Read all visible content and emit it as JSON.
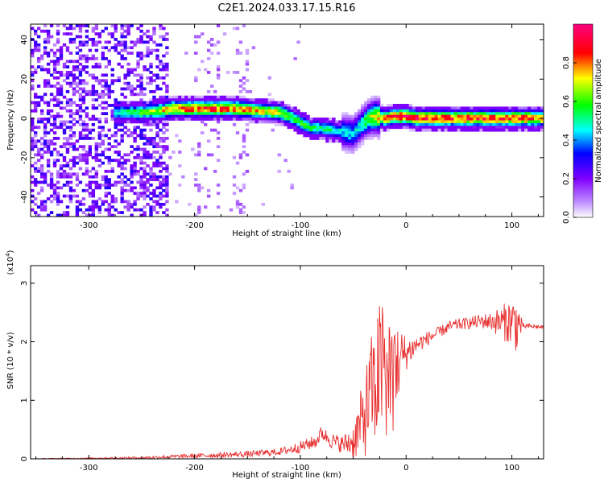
{
  "title": "C2E1.2024.033.17.15.R16",
  "chart_data": [
    {
      "type": "heatmap",
      "name": "spectrogram",
      "xlabel": "Height of straight line (km)",
      "ylabel": "Frequency (Hz)",
      "xlim": [
        -355,
        130
      ],
      "ylim": [
        -50,
        48
      ],
      "x_ticks": [
        -300,
        -200,
        -100,
        0,
        100
      ],
      "y_ticks": [
        -40,
        -20,
        0,
        20,
        40
      ],
      "colorbar": {
        "label": "Normalized spectral amplitude",
        "range": [
          0.0,
          1.0
        ],
        "ticks": [
          0.0,
          0.2,
          0.4,
          0.6,
          0.8
        ],
        "colors": [
          "#ffffff",
          "#8000ff",
          "#0000ff",
          "#00ffff",
          "#00ff00",
          "#ffff00",
          "#ff0000",
          "#ff0080"
        ]
      },
      "ridge": {
        "x": [
          -270,
          -250,
          -230,
          -220,
          -200,
          -180,
          -160,
          -140,
          -120,
          -110,
          -100,
          -90,
          -80,
          -70,
          -60,
          -50,
          -45,
          -40,
          -35,
          -30,
          -20,
          -10,
          0,
          10,
          30,
          60,
          100,
          130
        ],
        "y": [
          3,
          3,
          4,
          5,
          5,
          5,
          5,
          4,
          3,
          1,
          -2,
          -5,
          -5,
          -6,
          -7,
          -8,
          -5,
          -2,
          0,
          1,
          0,
          1,
          1,
          0,
          0,
          0,
          0,
          0
        ],
        "peak": [
          0.5,
          0.6,
          0.7,
          0.8,
          0.85,
          0.85,
          0.8,
          0.75,
          0.7,
          0.6,
          0.6,
          0.55,
          0.5,
          0.5,
          0.45,
          0.45,
          0.45,
          0.5,
          0.6,
          0.7,
          0.8,
          0.85,
          0.9,
          0.9,
          0.85,
          0.85,
          0.85,
          0.8
        ]
      }
    },
    {
      "type": "line",
      "name": "snr",
      "xlabel": "Height of straight line (km)",
      "ylabel": "SNR (10 * v/v)",
      "y_multiplier": "(x10",
      "y_multiplier_exp": "4",
      "y_multiplier_close": ")",
      "xlim": [
        -355,
        130
      ],
      "ylim": [
        0,
        3.3
      ],
      "x_ticks": [
        -300,
        -200,
        -100,
        0,
        100
      ],
      "y_ticks": [
        0,
        1,
        2,
        3
      ],
      "color": "#e83030",
      "envelope": {
        "x": [
          -355,
          -300,
          -250,
          -200,
          -150,
          -120,
          -100,
          -85,
          -80,
          -70,
          -60,
          -50,
          -40,
          -35,
          -30,
          -25,
          -20,
          -15,
          -10,
          -5,
          0,
          10,
          20,
          30,
          40,
          50,
          60,
          70,
          80,
          90,
          100,
          105,
          110,
          120,
          130
        ],
        "y": [
          0.0,
          0.01,
          0.02,
          0.05,
          0.08,
          0.12,
          0.2,
          0.3,
          0.45,
          0.3,
          0.25,
          0.3,
          0.7,
          1.0,
          1.3,
          1.5,
          1.6,
          1.7,
          1.6,
          1.7,
          1.8,
          1.95,
          2.05,
          2.15,
          2.25,
          2.3,
          2.32,
          2.35,
          2.35,
          2.33,
          2.35,
          2.3,
          2.27,
          2.26,
          2.25
        ]
      },
      "noise": {
        "x": [
          -355,
          -300,
          -250,
          -200,
          -160,
          -120,
          -100,
          -80,
          -60,
          -50,
          -45,
          -40,
          -30,
          -20,
          -10,
          0,
          10,
          30,
          60,
          80,
          95,
          105,
          110,
          130
        ],
        "y": [
          0.005,
          0.01,
          0.02,
          0.04,
          0.05,
          0.06,
          0.1,
          0.12,
          0.15,
          0.3,
          0.5,
          0.7,
          1.1,
          1.3,
          0.8,
          0.3,
          0.15,
          0.1,
          0.1,
          0.15,
          0.35,
          0.5,
          0.05,
          0.03
        ]
      }
    }
  ]
}
